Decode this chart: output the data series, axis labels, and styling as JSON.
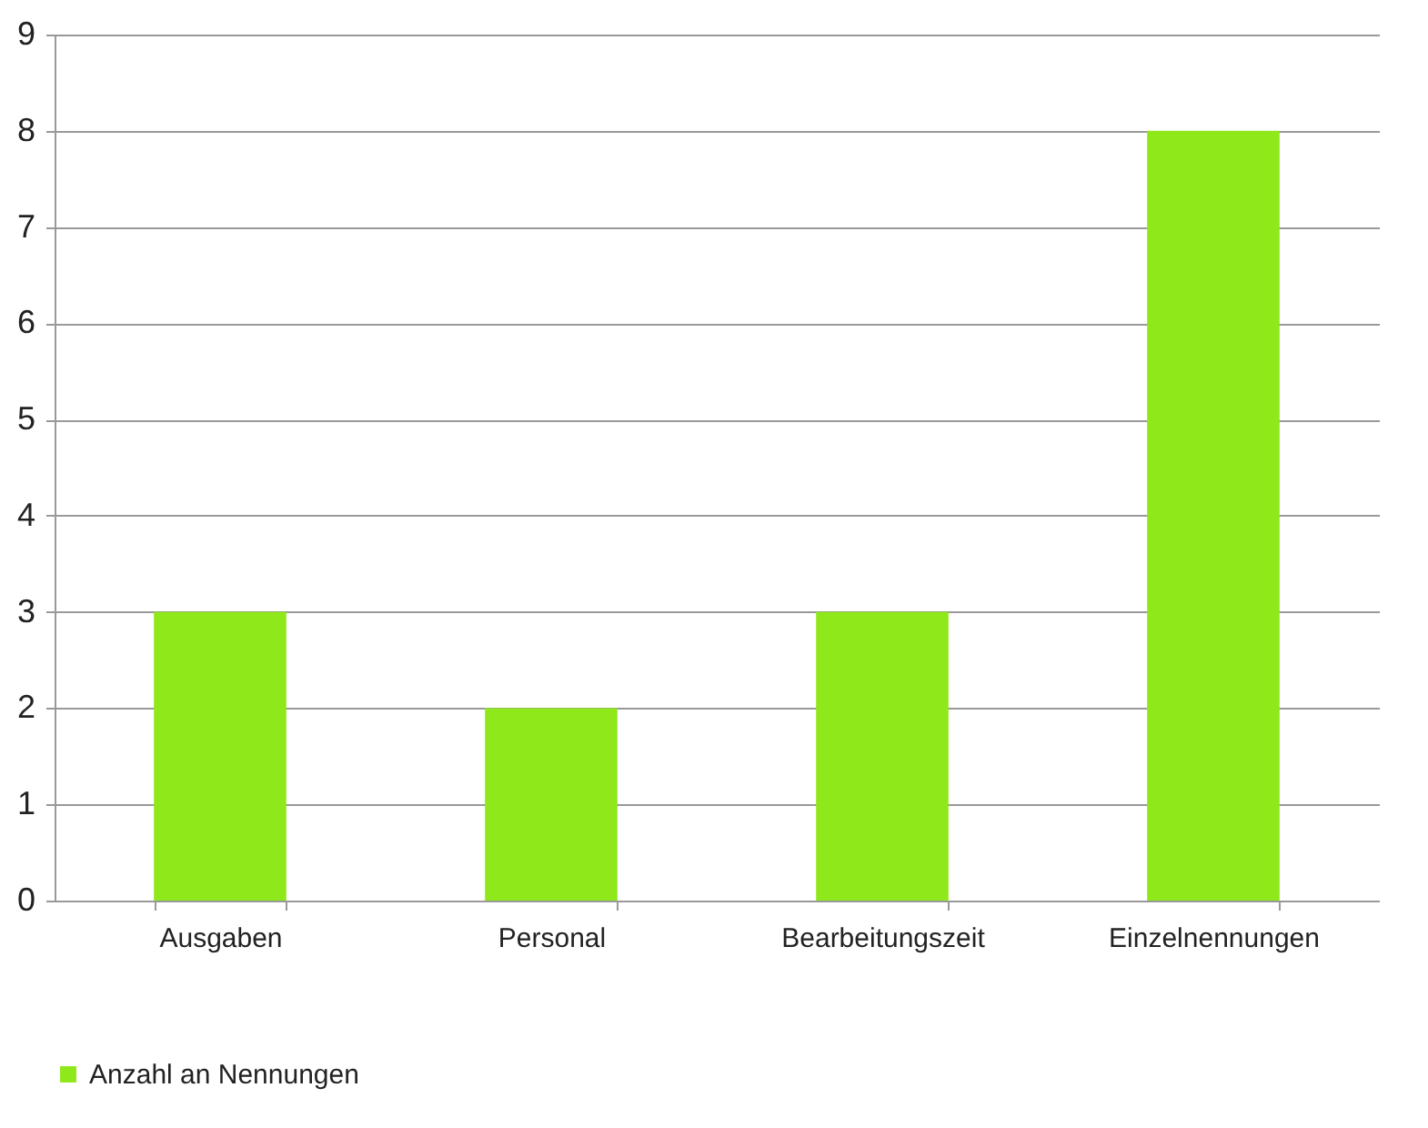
{
  "chart_data": {
    "type": "bar",
    "categories": [
      "Ausgaben",
      "Personal",
      "Bearbeitungszeit",
      "Einzelnennungen"
    ],
    "series": [
      {
        "name": "Anzahl an Nennungen",
        "color": "#8fe81a",
        "values": [
          3,
          2,
          3,
          8
        ]
      }
    ],
    "ylim": [
      0,
      9
    ],
    "yticks": [
      0,
      1,
      2,
      3,
      4,
      5,
      6,
      7,
      8,
      9
    ],
    "grid": "y",
    "legend": "bottom"
  }
}
